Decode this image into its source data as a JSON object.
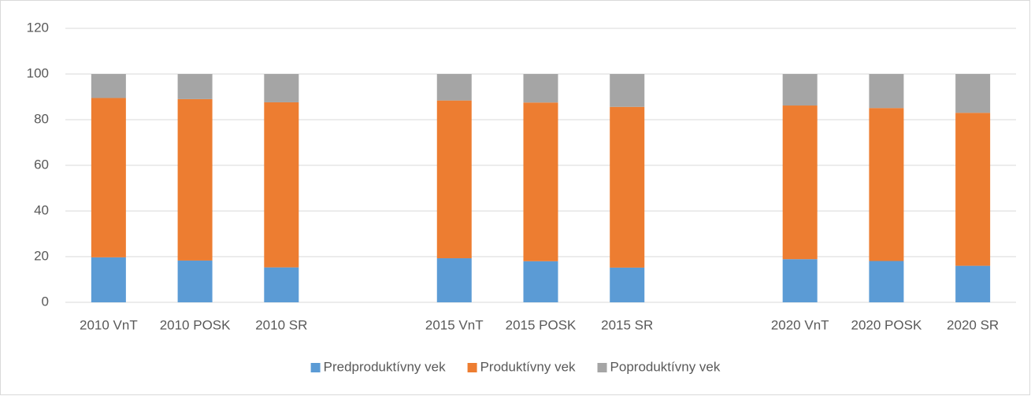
{
  "chart_data": {
    "type": "stacked_bar",
    "categories": [
      "2010 VnT",
      "2010 POSK",
      "2010 SR",
      null,
      "2015 VnT",
      "2015 POSK",
      "2015 SR",
      null,
      "2020 VnT",
      "2020 POSK",
      "2020 SR"
    ],
    "series": [
      {
        "name": "Predproduktívny vek",
        "color": "#5b9bd5",
        "values": [
          19.7,
          18.3,
          15.3,
          null,
          19.3,
          18.0,
          15.2,
          null,
          18.9,
          18.1,
          16.0
        ]
      },
      {
        "name": "Produktívny vek",
        "color": "#ed7d31",
        "values": [
          69.8,
          70.7,
          72.3,
          null,
          69.1,
          69.5,
          70.4,
          null,
          67.3,
          67.0,
          67.0
        ]
      },
      {
        "name": "Poproduktívny vek",
        "color": "#a5a5a5",
        "values": [
          10.5,
          11.0,
          12.4,
          null,
          11.6,
          12.5,
          14.4,
          null,
          13.8,
          14.9,
          17.0
        ]
      }
    ],
    "ylim": [
      0,
      120
    ],
    "yticks": [
      0,
      20,
      40,
      60,
      80,
      100,
      120
    ],
    "grid": true,
    "legend": "bottom"
  }
}
